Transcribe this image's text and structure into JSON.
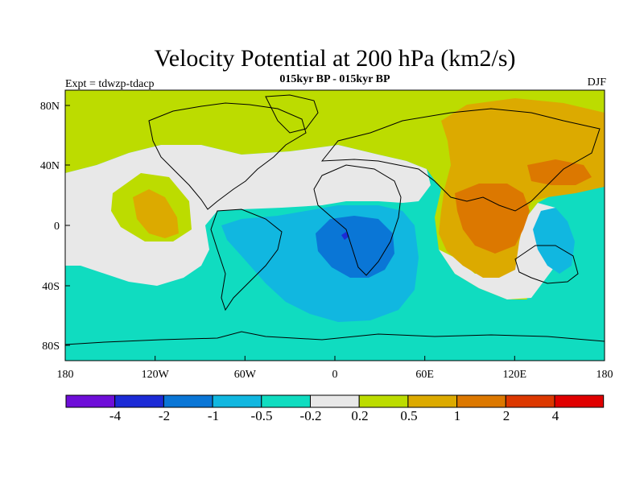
{
  "title": "Velocity Potential at 200 hPa (km2/s)",
  "subtitle": "015kyr BP - 015kyr BP",
  "left_label": "Expt = tdwzp-tdacp",
  "right_label": "DJF",
  "map": {
    "lon_range": [
      -180,
      180
    ],
    "lat_range": [
      -90,
      90
    ],
    "lon_ticks": [
      "180",
      "120W",
      "60W",
      "0",
      "60E",
      "120E",
      "180"
    ],
    "lat_ticks": [
      "80N",
      "40N",
      "0",
      "40S",
      "80S"
    ]
  },
  "colorbar": {
    "colors": [
      "#6e0ed8",
      "#1c2bd6",
      "#0a76d6",
      "#11b7e0",
      "#10dcc0",
      "#e8e8e8",
      "#bcdc00",
      "#dcaa00",
      "#dc7800",
      "#dc3800",
      "#e00000"
    ],
    "labels": [
      "-4",
      "-2",
      "-1",
      "-0.5",
      "-0.2",
      "0.2",
      "0.5",
      "1",
      "2",
      "4"
    ]
  }
}
